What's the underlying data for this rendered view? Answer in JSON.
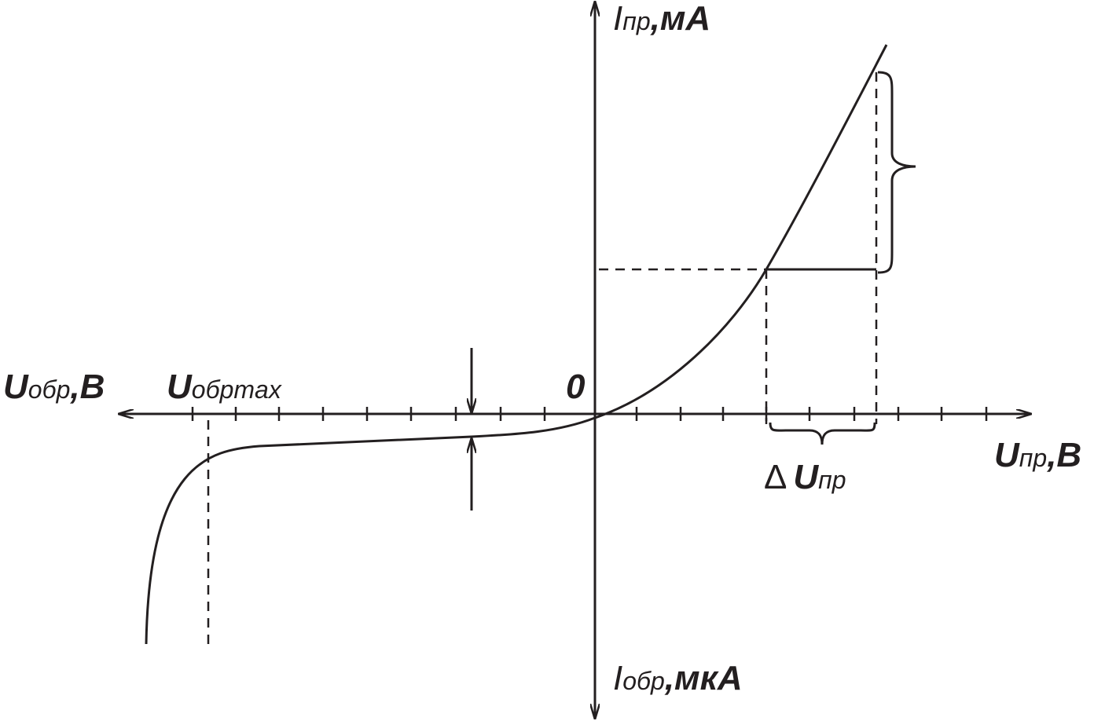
{
  "labels": {
    "forward_current": {
      "symbol": "I",
      "subscript": "пр",
      "unit": ",мА"
    },
    "reverse_current": {
      "symbol": "I",
      "subscript": "обр",
      "unit": ",мкА"
    },
    "reverse_voltage": {
      "symbol": "U",
      "subscript": "обр",
      "unit": ",B"
    },
    "reverse_voltage_max": {
      "symbol": "U",
      "subscript": "обрmax"
    },
    "origin": "0",
    "forward_voltage": {
      "symbol": "U",
      "subscript": "пр",
      "unit": ",B"
    },
    "delta_forward_voltage": {
      "delta": "Δ",
      "symbol": "U",
      "subscript": "пр"
    }
  }
}
